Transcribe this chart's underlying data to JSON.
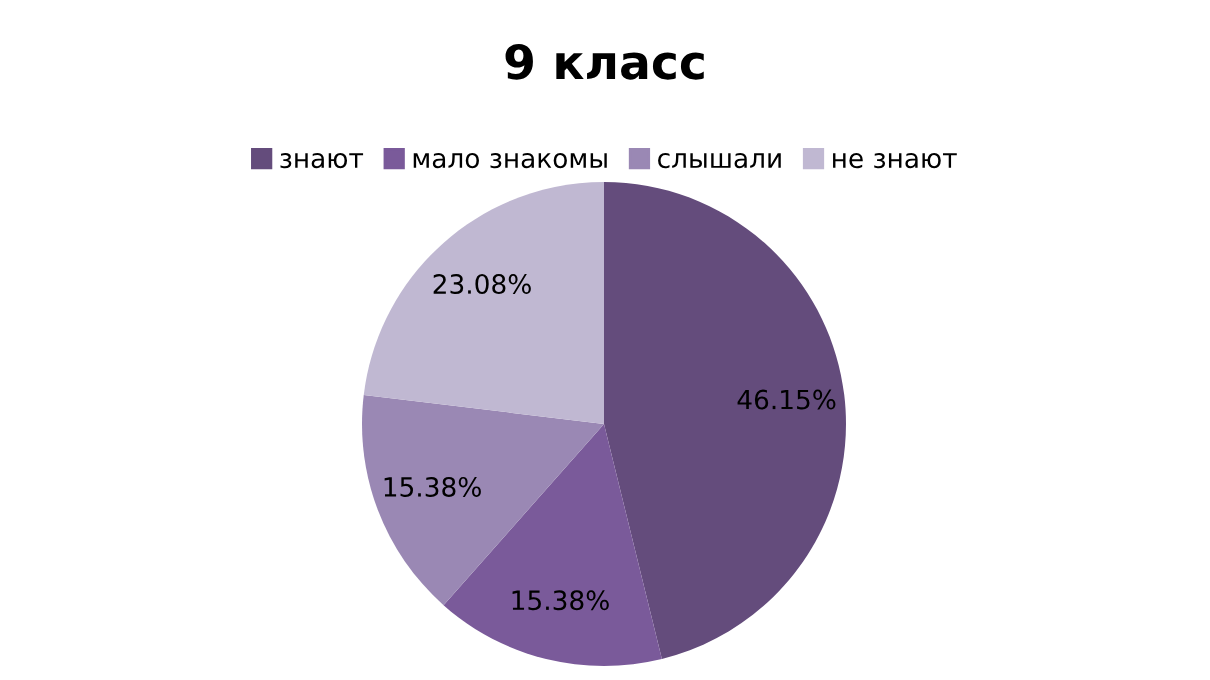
{
  "chart_data": {
    "type": "pie",
    "title": "9 класс",
    "categories": [
      "знают",
      "мало знакомы",
      "слышали",
      "не знают"
    ],
    "values": [
      46.15,
      15.38,
      15.38,
      23.08
    ],
    "colors": [
      "#644c7c",
      "#7a5a9a",
      "#9a88b4",
      "#c0b8d2"
    ],
    "value_labels": [
      "46.15%",
      "15.38%",
      "15.38%",
      "23.08%"
    ],
    "legend": "top"
  }
}
